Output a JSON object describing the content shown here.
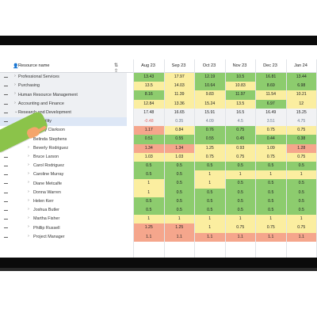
{
  "resource_header": "Resource name",
  "header_icons": "⇅ ⇧",
  "months": [
    "Aug 23",
    "Sep 23",
    "Oct 23",
    "Nov 23",
    "Dec 23",
    "Jan 24"
  ],
  "rows": [
    {
      "name": "Professional Services",
      "kind": "group-item",
      "expand": "›",
      "values": [
        "13.43",
        "17.97",
        "12.19",
        "10.5",
        "16.81",
        "13.44"
      ],
      "colors": [
        "g",
        "y",
        "g",
        "g",
        "g",
        "g"
      ]
    },
    {
      "name": "Purchasing",
      "kind": "group-item",
      "expand": "›",
      "values": [
        "13.5",
        "14.03",
        "10.64",
        "10.83",
        "8.69",
        "6.98"
      ],
      "colors": [
        "y",
        "y",
        "g",
        "y",
        "g",
        "g"
      ]
    },
    {
      "name": "Human Resource Management",
      "kind": "group-item",
      "expand": "›",
      "values": [
        "8.16",
        "11.39",
        "9.83",
        "11.97",
        "11.54",
        "10.21"
      ],
      "colors": [
        "g",
        "y",
        "y",
        "g",
        "y",
        "y"
      ]
    },
    {
      "name": "Accounting and Finance",
      "kind": "group-item",
      "expand": "›",
      "values": [
        "12.84",
        "13.36",
        "15.24",
        "13.5",
        "6.97",
        "12"
      ],
      "colors": [
        "y",
        "y",
        "y",
        "y",
        "g",
        "y"
      ]
    },
    {
      "name": "Research and Development",
      "kind": "group-open",
      "expand": "⌄",
      "values": [
        "17.48",
        "16.65",
        "15.91",
        "16.5",
        "16.49",
        "15.25"
      ],
      "colors": [
        "n",
        "n",
        "n",
        "n",
        "n",
        "n"
      ]
    },
    {
      "name": "Net Availability",
      "kind": "avail",
      "expand": "",
      "values": [
        "-0.48",
        "0.35",
        "4.09",
        "4.5",
        "3.51",
        "4.75"
      ],
      "colors": [
        "n",
        "n",
        "n",
        "n",
        "n",
        "n"
      ]
    },
    {
      "name": "Audrey Clarkson",
      "kind": "person",
      "expand": "›",
      "values": [
        "1.17",
        "0.84",
        "0.76",
        "0.75",
        "0.75",
        "0.75"
      ],
      "colors": [
        "r",
        "y",
        "g",
        "g",
        "y",
        "y"
      ]
    },
    {
      "name": "Belinda Stephens",
      "kind": "person",
      "expand": "›",
      "values": [
        "0.51",
        "0.55",
        "0.55",
        "0.45",
        "0.44",
        "0.38"
      ],
      "colors": [
        "g",
        "g",
        "g",
        "g",
        "g",
        "g"
      ]
    },
    {
      "name": "Beverly Rodriguez",
      "kind": "person",
      "expand": "›",
      "values": [
        "1.34",
        "1.34",
        "1.25",
        "0.93",
        "1.09",
        "1.28"
      ],
      "colors": [
        "r",
        "r",
        "y",
        "y",
        "y",
        "r"
      ]
    },
    {
      "name": "Bruce Larson",
      "kind": "person",
      "expand": "›",
      "values": [
        "1.03",
        "1.03",
        "0.75",
        "0.75",
        "0.75",
        "0.75"
      ],
      "colors": [
        "y",
        "y",
        "y",
        "y",
        "y",
        "y"
      ]
    },
    {
      "name": "Carol Rodriguez",
      "kind": "person",
      "expand": "›",
      "values": [
        "0.5",
        "0.5",
        "0.5",
        "0.5",
        "0.5",
        "0.5"
      ],
      "colors": [
        "g",
        "g",
        "g",
        "g",
        "g",
        "g"
      ]
    },
    {
      "name": "Caroline Murray",
      "kind": "person",
      "expand": "›",
      "values": [
        "0.5",
        "0.5",
        "1",
        "1",
        "1",
        "1"
      ],
      "colors": [
        "g",
        "g",
        "y",
        "y",
        "y",
        "y"
      ]
    },
    {
      "name": "Diane Metcalfe",
      "kind": "person",
      "expand": "›",
      "values": [
        "1",
        "0.5",
        "1",
        "0.5",
        "0.5",
        "0.5"
      ],
      "colors": [
        "y",
        "g",
        "y",
        "g",
        "g",
        "g"
      ]
    },
    {
      "name": "Donna Warren",
      "kind": "person",
      "expand": "›",
      "values": [
        "1",
        "0.5",
        "0.5",
        "0.5",
        "0.5",
        "0.5"
      ],
      "colors": [
        "y",
        "g",
        "g",
        "g",
        "g",
        "g"
      ]
    },
    {
      "name": "Helen Kerr",
      "kind": "person",
      "expand": "›",
      "values": [
        "0.5",
        "0.5",
        "0.5",
        "0.5",
        "0.5",
        "0.5"
      ],
      "colors": [
        "g",
        "g",
        "g",
        "g",
        "g",
        "g"
      ]
    },
    {
      "name": "Joshua Butler",
      "kind": "person",
      "expand": "›",
      "values": [
        "0.5",
        "0.5",
        "0.5",
        "0.5",
        "0.5",
        "0.5"
      ],
      "colors": [
        "g",
        "g",
        "g",
        "g",
        "g",
        "g"
      ]
    },
    {
      "name": "Martha Fisher",
      "kind": "person",
      "expand": "›",
      "values": [
        "1",
        "1",
        "1",
        "1",
        "1",
        "1"
      ],
      "colors": [
        "y",
        "y",
        "y",
        "y",
        "y",
        "y"
      ]
    },
    {
      "name": "Phillip Russell",
      "kind": "person",
      "expand": "›",
      "values": [
        "1.25",
        "1.25",
        "1",
        "0.75",
        "0.75",
        "0.75"
      ],
      "colors": [
        "r",
        "r",
        "y",
        "y",
        "y",
        "y"
      ]
    },
    {
      "name": "Project Manager",
      "kind": "person",
      "expand": "›",
      "values": [
        "1.1",
        "1.1",
        "1.1",
        "1.1",
        "1.1",
        "1.1"
      ],
      "colors": [
        "r",
        "r",
        "r",
        "r",
        "r",
        "r"
      ]
    }
  ],
  "colors": {
    "green": "#8dcc6e",
    "yellow": "#fbeea0",
    "red": "#f5a68c",
    "accent_arm": "#8bc34a"
  }
}
